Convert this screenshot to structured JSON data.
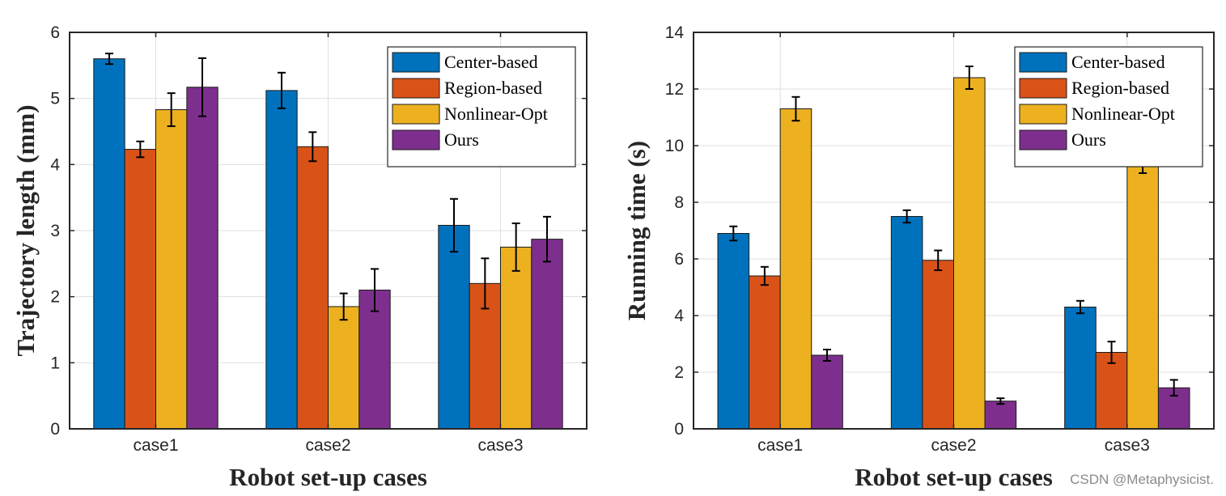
{
  "chart_data": [
    {
      "type": "bar",
      "title": "",
      "xlabel": "Robot set-up cases",
      "ylabel": "Trajectory length (mm)",
      "categories": [
        "case1",
        "case2",
        "case3"
      ],
      "ylim": [
        0,
        6
      ],
      "yticks": [
        0,
        1,
        2,
        3,
        4,
        5,
        6
      ],
      "grid": true,
      "legend_position": "top-right",
      "series": [
        {
          "name": "Center-based",
          "color": "#0072BD",
          "values": [
            5.6,
            5.12,
            3.08
          ],
          "errors": [
            0.08,
            0.27,
            0.4
          ]
        },
        {
          "name": "Region-based",
          "color": "#D95319",
          "values": [
            4.23,
            4.27,
            2.2
          ],
          "errors": [
            0.12,
            0.22,
            0.38
          ]
        },
        {
          "name": "Nonlinear-Opt",
          "color": "#EDB120",
          "values": [
            4.83,
            1.85,
            2.75
          ],
          "errors": [
            0.25,
            0.2,
            0.36
          ]
        },
        {
          "name": "Ours",
          "color": "#7E2F8E",
          "values": [
            5.17,
            2.1,
            2.87
          ],
          "errors": [
            0.44,
            0.32,
            0.34
          ]
        }
      ]
    },
    {
      "type": "bar",
      "title": "",
      "xlabel": "Robot set-up cases",
      "ylabel": "Running time (s)",
      "categories": [
        "case1",
        "case2",
        "case3"
      ],
      "ylim": [
        0,
        14
      ],
      "yticks": [
        0,
        2,
        4,
        6,
        8,
        10,
        12,
        14
      ],
      "grid": true,
      "legend_position": "top-right",
      "series": [
        {
          "name": "Center-based",
          "color": "#0072BD",
          "values": [
            6.9,
            7.5,
            4.3
          ],
          "errors": [
            0.25,
            0.22,
            0.22
          ]
        },
        {
          "name": "Region-based",
          "color": "#D95319",
          "values": [
            5.4,
            5.95,
            2.7
          ],
          "errors": [
            0.32,
            0.35,
            0.38
          ]
        },
        {
          "name": "Nonlinear-Opt",
          "color": "#EDB120",
          "values": [
            11.3,
            12.4,
            9.3
          ],
          "errors": [
            0.42,
            0.4,
            0.27
          ]
        },
        {
          "name": "Ours",
          "color": "#7E2F8E",
          "values": [
            2.6,
            0.98,
            1.45
          ],
          "errors": [
            0.2,
            0.1,
            0.28
          ]
        }
      ]
    }
  ],
  "watermark": "CSDN @Metaphysicist."
}
